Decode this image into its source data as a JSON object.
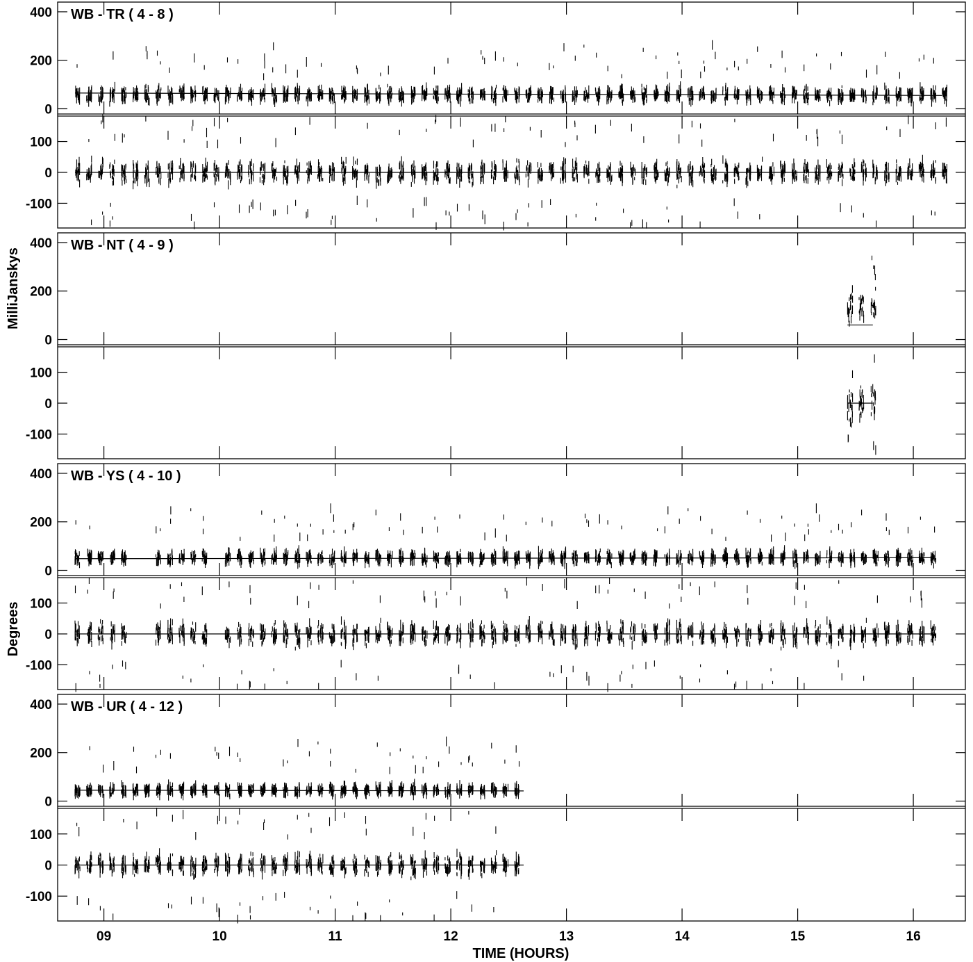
{
  "chart_data": {
    "type": "scatter",
    "x_axis": {
      "label": "TIME (HOURS)",
      "range": [
        8.6,
        16.45
      ],
      "ticks": [
        9,
        10,
        11,
        12,
        13,
        14,
        15,
        16
      ],
      "tick_labels": [
        "09",
        "10",
        "11",
        "12",
        "13",
        "14",
        "15",
        "16"
      ]
    },
    "y_axis_labels": {
      "amplitude": "MilliJanskys",
      "phase": "Degrees"
    },
    "amplitude_axis": {
      "range": [
        -10,
        440
      ],
      "ticks": [
        0,
        200,
        400
      ],
      "tick_labels": [
        "0",
        "200",
        "400"
      ]
    },
    "phase_axis": {
      "range": [
        -180,
        180
      ],
      "ticks": [
        -100,
        0,
        100
      ],
      "tick_labels": [
        "-100",
        "0",
        "100"
      ]
    },
    "panels": [
      {
        "title": "WB - TR ( 4 - 8 )",
        "time_range": [
          8.75,
          16.25
        ],
        "gaps": [],
        "amplitude_model": [
          [
            8.75,
            65
          ],
          [
            16.25,
            55
          ]
        ],
        "phase_model": [
          [
            8.75,
            0
          ],
          [
            16.25,
            0
          ]
        ],
        "amp_mean": 58,
        "amp_spread": 42,
        "phase_spread": 48
      },
      {
        "title": "WB - NT ( 4 - 9 )",
        "time_range": [
          15.43,
          15.65
        ],
        "gaps": [],
        "amplitude_model": [
          [
            15.43,
            60
          ],
          [
            15.65,
            60
          ]
        ],
        "phase_model": [
          [
            15.43,
            0
          ],
          [
            15.65,
            0
          ]
        ],
        "amp_mean": 130,
        "amp_spread": 100,
        "phase_spread": 85
      },
      {
        "title": "WB - YS ( 4 - 10 )",
        "time_range": [
          8.75,
          16.15
        ],
        "gaps": [
          [
            9.2,
            9.4
          ],
          [
            9.85,
            10.0
          ]
        ],
        "amplitude_model": [
          [
            8.75,
            48
          ],
          [
            16.15,
            52
          ]
        ],
        "phase_model": [
          [
            8.75,
            0
          ],
          [
            16.15,
            0
          ]
        ],
        "amp_mean": 52,
        "amp_spread": 38,
        "phase_spread": 50
      },
      {
        "title": "WB - UR ( 4 - 12 )",
        "time_range": [
          8.75,
          12.63
        ],
        "gaps": [],
        "amplitude_model": [
          [
            8.75,
            45
          ],
          [
            12.63,
            42
          ]
        ],
        "phase_model": [
          [
            8.75,
            0
          ],
          [
            12.63,
            0
          ]
        ],
        "amp_mean": 45,
        "amp_spread": 32,
        "phase_spread": 45
      }
    ],
    "scan_interval_hours": 0.1,
    "grid": false
  }
}
